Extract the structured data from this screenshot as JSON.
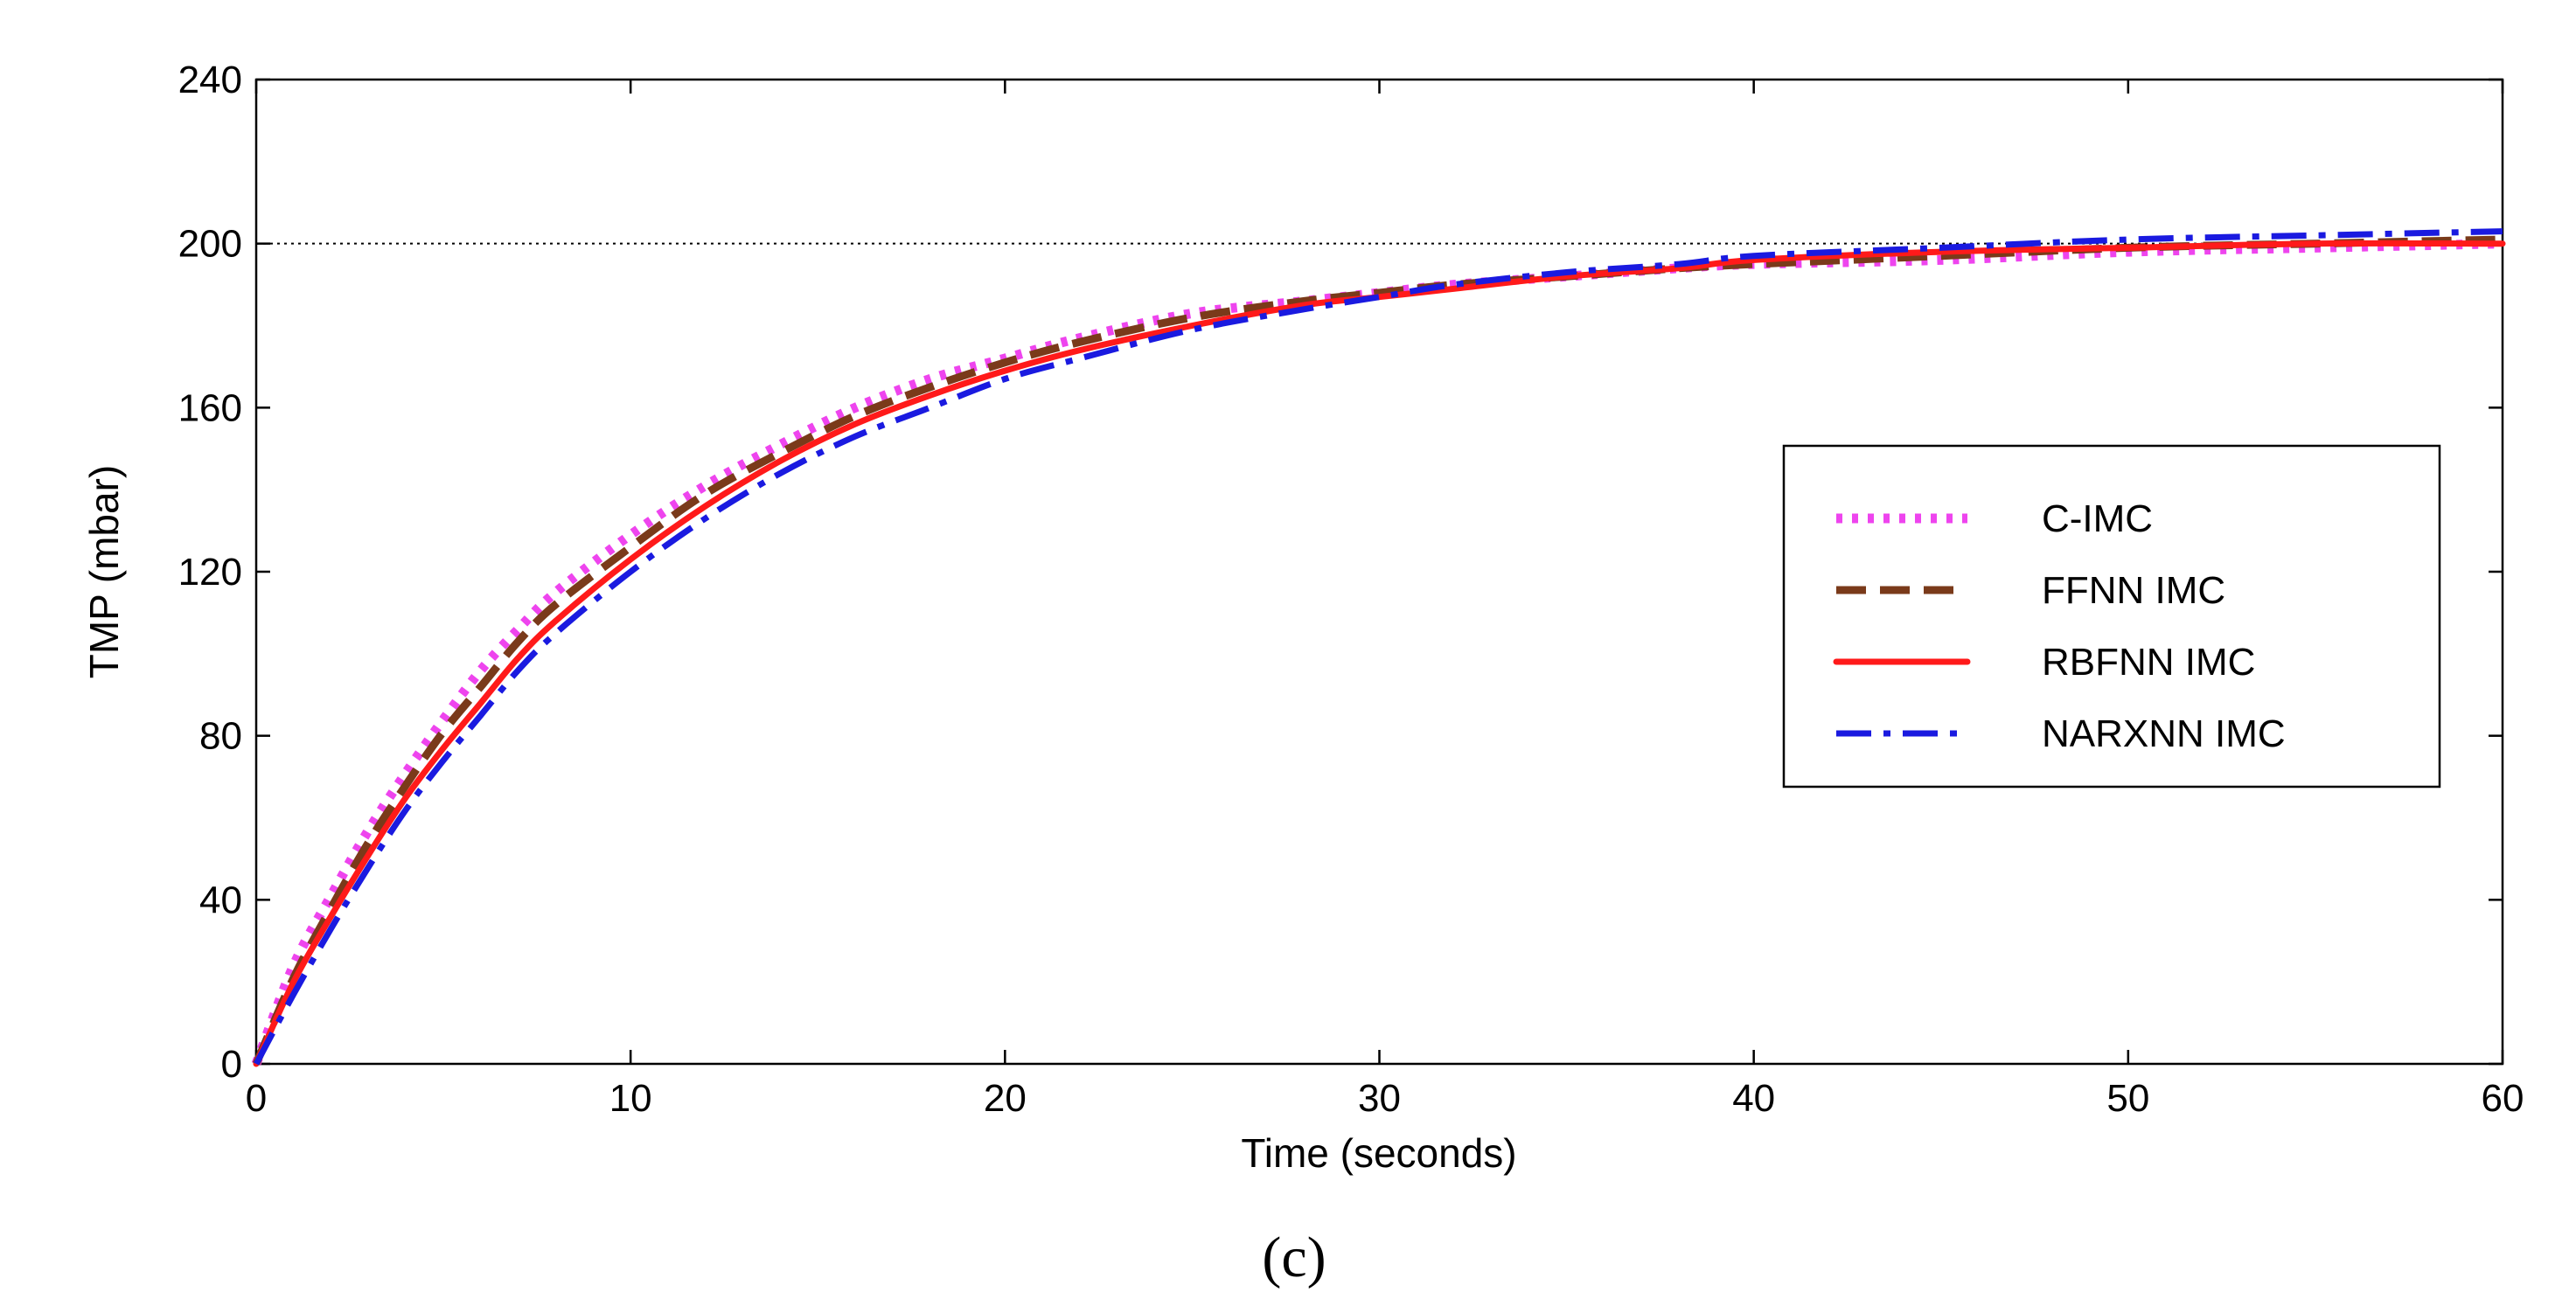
{
  "chart_data": {
    "type": "line",
    "title": "",
    "xlabel": "Time (seconds)",
    "ylabel": "TMP (mbar)",
    "panel_label": "(c)",
    "xlim": [
      0,
      60
    ],
    "ylim": [
      0,
      240
    ],
    "xticks": [
      0,
      10,
      20,
      30,
      40,
      50,
      60
    ],
    "yticks": [
      0,
      40,
      80,
      120,
      160,
      200,
      240
    ],
    "grid": false,
    "legend_position": "center-right",
    "reference_line": {
      "y": 200,
      "style": "dotted",
      "color": "#000000"
    },
    "series": [
      {
        "name": "C-IMC",
        "color": "#ee44ee",
        "style": "dotted",
        "x": [
          0,
          1,
          2,
          3,
          4,
          5,
          6,
          7,
          8,
          10,
          12,
          14,
          16,
          18,
          20,
          22,
          25,
          28,
          30,
          32,
          35,
          38,
          40,
          45,
          50,
          55,
          60
        ],
        "y": [
          0,
          24,
          41,
          57,
          71,
          84,
          96,
          106,
          115,
          129,
          141,
          151,
          160,
          167,
          172,
          177,
          183,
          186,
          188,
          190,
          192,
          194,
          195,
          196,
          198,
          199,
          200
        ]
      },
      {
        "name": "FFNN IMC",
        "color": "#7a3a1a",
        "style": "dashed",
        "x": [
          0,
          1,
          2,
          3,
          4,
          5,
          6,
          7,
          8,
          10,
          12,
          14,
          16,
          18,
          20,
          22,
          25,
          28,
          30,
          32,
          35,
          38,
          40,
          45,
          50,
          55,
          60
        ],
        "y": [
          0,
          21,
          38,
          54,
          68,
          81,
          92,
          103,
          112,
          126,
          139,
          149,
          158,
          165,
          171,
          176,
          182,
          186,
          188,
          190,
          192,
          194,
          195,
          197,
          199,
          200,
          201
        ]
      },
      {
        "name": "RBFNN IMC",
        "color": "#ff1a1a",
        "style": "solid",
        "x": [
          0,
          1,
          2,
          3,
          4,
          5,
          6,
          7,
          8,
          10,
          12,
          14,
          16,
          18,
          20,
          22,
          25,
          28,
          30,
          32,
          35,
          38,
          40,
          45,
          50,
          55,
          60
        ],
        "y": [
          0,
          20,
          36,
          51,
          65,
          77,
          88,
          99,
          108,
          123,
          136,
          147,
          156,
          163,
          169,
          174,
          180,
          185,
          187,
          189,
          192,
          194,
          196,
          198,
          199,
          200,
          200
        ]
      },
      {
        "name": "NARXNN IMC",
        "color": "#1a1ae0",
        "style": "dashdot",
        "x": [
          0,
          1,
          2,
          3,
          4,
          5,
          6,
          7,
          8,
          10,
          12,
          14,
          16,
          18,
          20,
          22,
          25,
          28,
          30,
          32,
          35,
          38,
          40,
          45,
          50,
          55,
          60
        ],
        "y": [
          0,
          17,
          33,
          48,
          62,
          74,
          85,
          96,
          105,
          120,
          133,
          144,
          153,
          160,
          167,
          172,
          179,
          184,
          187,
          190,
          193,
          195,
          197,
          199,
          201,
          202,
          203
        ]
      }
    ]
  }
}
